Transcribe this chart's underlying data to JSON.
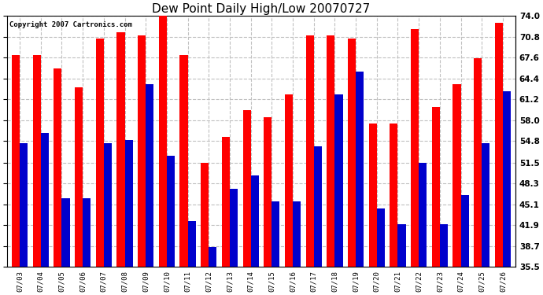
{
  "title": "Dew Point Daily High/Low 20070727",
  "copyright": "Copyright 2007 Cartronics.com",
  "dates": [
    "07/03",
    "07/04",
    "07/05",
    "07/06",
    "07/07",
    "07/08",
    "07/09",
    "07/10",
    "07/11",
    "07/12",
    "07/13",
    "07/14",
    "07/15",
    "07/16",
    "07/17",
    "07/18",
    "07/19",
    "07/20",
    "07/21",
    "07/22",
    "07/23",
    "07/24",
    "07/25",
    "07/26"
  ],
  "highs": [
    68.0,
    68.0,
    66.0,
    63.0,
    70.5,
    71.5,
    71.0,
    74.0,
    68.0,
    51.5,
    55.5,
    59.5,
    58.5,
    62.0,
    71.0,
    71.0,
    70.5,
    57.5,
    57.5,
    72.0,
    60.0,
    63.5,
    67.5,
    73.0
  ],
  "lows": [
    54.5,
    56.0,
    46.0,
    46.0,
    54.5,
    55.0,
    63.5,
    52.5,
    42.5,
    38.5,
    47.5,
    49.5,
    45.5,
    45.5,
    54.0,
    62.0,
    65.5,
    44.5,
    42.0,
    51.5,
    42.0,
    46.5,
    54.5,
    62.5
  ],
  "high_color": "#ff0000",
  "low_color": "#0000cc",
  "bg_color": "#ffffff",
  "grid_color": "#c0c0c0",
  "title_fontsize": 11,
  "yticks": [
    74.0,
    70.8,
    67.6,
    64.4,
    61.2,
    58.0,
    54.8,
    51.5,
    48.3,
    45.1,
    41.9,
    38.7,
    35.5
  ],
  "ymin": 35.5,
  "ymax": 74.0,
  "bar_width": 0.38
}
